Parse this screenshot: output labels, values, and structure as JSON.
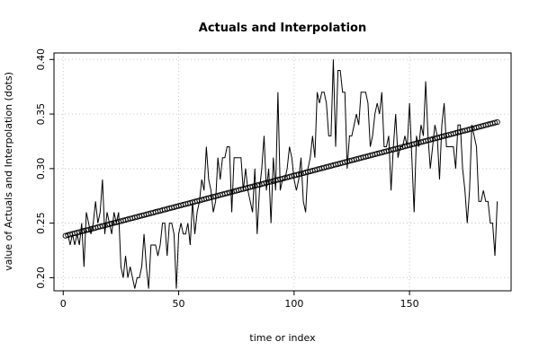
{
  "chart_data": {
    "type": "line",
    "title": "Actuals and Interpolation",
    "xlabel": "time or index",
    "ylabel": "value of Actuals and Interpolation (dots)",
    "xlim": [
      -4,
      194
    ],
    "ylim": [
      0.188,
      0.406
    ],
    "x_ticks": [
      0,
      50,
      100,
      150
    ],
    "y_ticks": [
      0.2,
      0.25,
      0.3,
      0.35,
      0.4
    ],
    "y_tick_labels": [
      "0.20",
      "0.25",
      "0.30",
      "0.35",
      "0.40"
    ],
    "grid": true,
    "series": [
      {
        "style": "line",
        "color": "#000000",
        "values": [
          0.24,
          0.24,
          0.23,
          0.24,
          0.23,
          0.24,
          0.23,
          0.25,
          0.21,
          0.26,
          0.25,
          0.24,
          0.25,
          0.27,
          0.25,
          0.26,
          0.29,
          0.24,
          0.26,
          0.25,
          0.24,
          0.26,
          0.25,
          0.26,
          0.21,
          0.2,
          0.22,
          0.2,
          0.21,
          0.2,
          0.19,
          0.2,
          0.2,
          0.21,
          0.24,
          0.21,
          0.19,
          0.23,
          0.23,
          0.23,
          0.22,
          0.23,
          0.25,
          0.25,
          0.22,
          0.25,
          0.25,
          0.24,
          0.19,
          0.24,
          0.25,
          0.24,
          0.24,
          0.25,
          0.23,
          0.27,
          0.24,
          0.26,
          0.27,
          0.29,
          0.28,
          0.32,
          0.29,
          0.28,
          0.26,
          0.27,
          0.31,
          0.29,
          0.31,
          0.31,
          0.32,
          0.32,
          0.26,
          0.31,
          0.31,
          0.31,
          0.31,
          0.28,
          0.3,
          0.28,
          0.27,
          0.26,
          0.3,
          0.24,
          0.28,
          0.3,
          0.33,
          0.28,
          0.3,
          0.25,
          0.31,
          0.28,
          0.37,
          0.28,
          0.29,
          0.29,
          0.3,
          0.32,
          0.31,
          0.29,
          0.28,
          0.29,
          0.31,
          0.27,
          0.26,
          0.3,
          0.31,
          0.33,
          0.31,
          0.37,
          0.36,
          0.37,
          0.37,
          0.36,
          0.33,
          0.33,
          0.4,
          0.32,
          0.39,
          0.39,
          0.37,
          0.37,
          0.3,
          0.33,
          0.33,
          0.34,
          0.35,
          0.34,
          0.37,
          0.37,
          0.37,
          0.36,
          0.32,
          0.33,
          0.35,
          0.36,
          0.35,
          0.37,
          0.32,
          0.32,
          0.33,
          0.28,
          0.32,
          0.35,
          0.31,
          0.32,
          0.32,
          0.33,
          0.32,
          0.36,
          0.31,
          0.26,
          0.33,
          0.32,
          0.34,
          0.33,
          0.38,
          0.33,
          0.3,
          0.32,
          0.34,
          0.33,
          0.29,
          0.34,
          0.36,
          0.32,
          0.32,
          0.32,
          0.32,
          0.3,
          0.34,
          0.34,
          0.3,
          0.28,
          0.25,
          0.28,
          0.34,
          0.33,
          0.32,
          0.27,
          0.27,
          0.28,
          0.27,
          0.27,
          0.25,
          0.25,
          0.22,
          0.27
        ]
      },
      {
        "style": "points",
        "color": "#000000",
        "start": 0.2385,
        "step": 0.000557
      }
    ]
  }
}
